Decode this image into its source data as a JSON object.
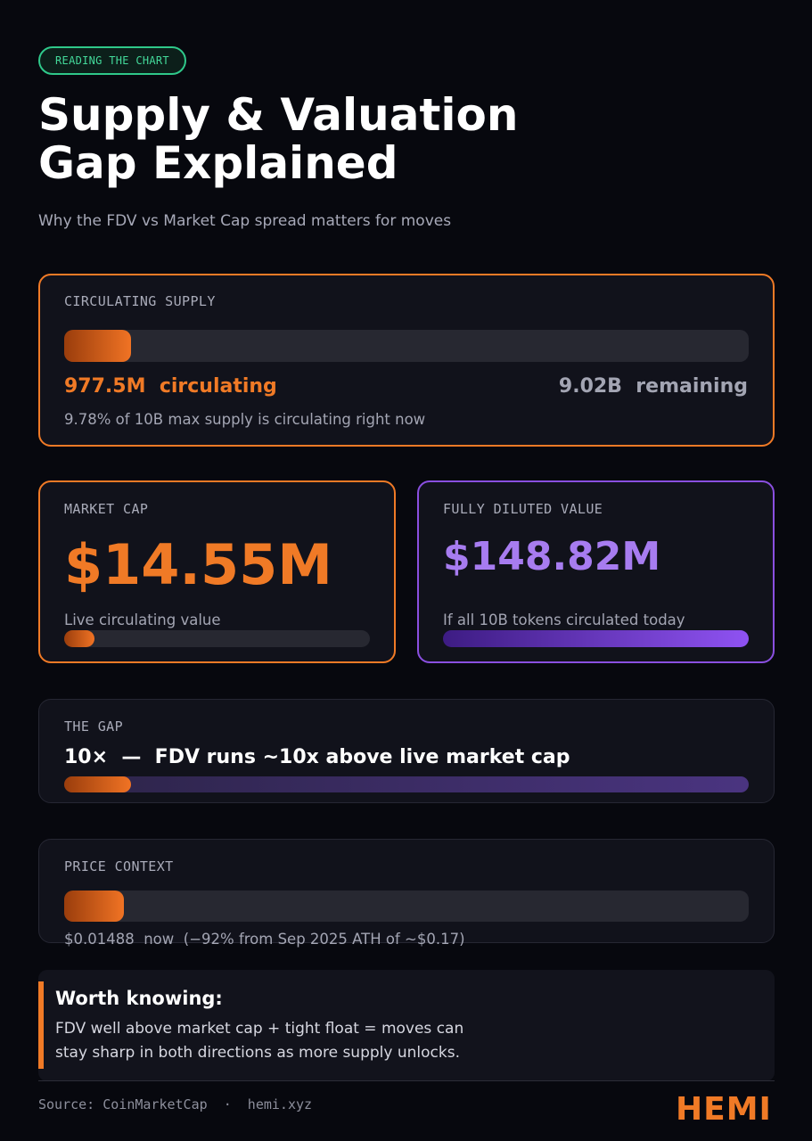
{
  "badge": "READING THE CHART",
  "title_line1": "Supply & Valuation",
  "title_line2": "Gap Explained",
  "subtitle": "Why the FDV vs Market Cap spread matters for moves",
  "supply": {
    "label": "CIRCULATING SUPPLY",
    "circulating_value": "977.5M",
    "circulating_word": "circulating",
    "remaining_value": "9.02B",
    "remaining_word": "remaining",
    "caption": "9.78% of 10B max supply is circulating right now",
    "fill_fraction": 0.0978
  },
  "market_cap": {
    "label": "MARKET CAP",
    "value": "$14.55M",
    "caption": "Live circulating value",
    "fill_fraction": 0.098
  },
  "fdv": {
    "label": "FULLY DILUTED VALUE",
    "value": "$148.82M",
    "caption": "If all 10B tokens circulated today",
    "fill_fraction": 1.0
  },
  "gap": {
    "label": "THE GAP",
    "headline": "10×  —  FDV runs ~10x above live market cap",
    "fill_fraction": 0.098
  },
  "price": {
    "label": "PRICE CONTEXT",
    "caption": "$0.01488  now  (−92% from Sep 2025 ATH of ~$0.17)",
    "fill_fraction": 0.087
  },
  "note": {
    "heading": "Worth knowing:",
    "line1": "FDV well above market cap + tight float = moves can",
    "line2": "stay sharp in both directions as more supply unlocks."
  },
  "footer": {
    "source": "Source: CoinMarketCap  ·  hemi.xyz",
    "brand": "HEMI"
  },
  "colors": {
    "accent_orange": "#f07a26",
    "accent_purple": "#a77cf0",
    "badge_green": "#43d99a",
    "background": "#07080e"
  }
}
